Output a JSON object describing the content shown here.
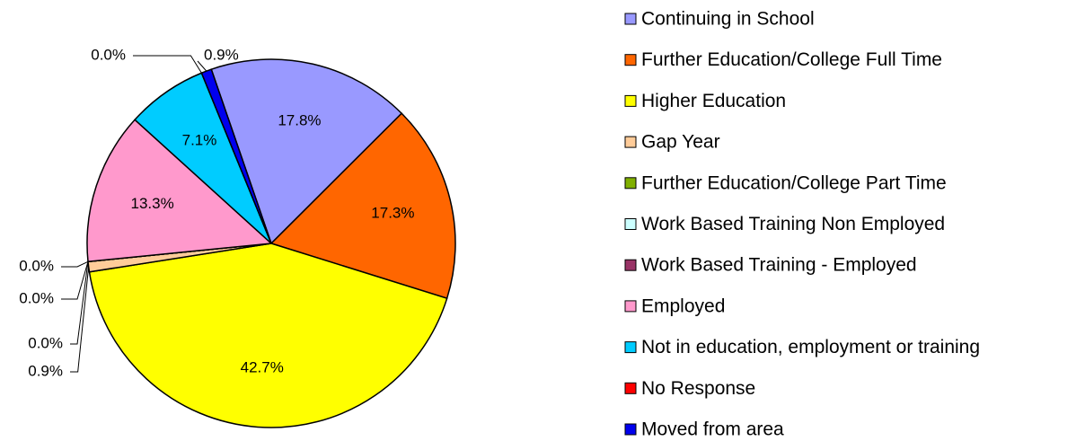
{
  "chart_data": {
    "type": "pie",
    "categories": [
      "Continuing in School",
      "Further Education/College Full Time",
      "Higher Education",
      "Gap Year",
      "Further Education/College Part Time",
      "Work Based Training Non Employed",
      "Work Based Training - Employed",
      "Employed",
      "Not in education, employment or training",
      "No Response",
      "Moved from area"
    ],
    "values": [
      17.8,
      17.3,
      42.7,
      0.9,
      0.0,
      0.0,
      0.0,
      13.3,
      7.1,
      0.0,
      0.9
    ],
    "value_labels": [
      "17.8%",
      "17.3%",
      "42.7%",
      "0.9%",
      "0.0%",
      "0.0%",
      "0.0%",
      "13.3%",
      "7.1%",
      "0.0%",
      "0.9%"
    ],
    "colors": [
      "#9999ff",
      "#ff6600",
      "#ffff00",
      "#ffcc99",
      "#80b000",
      "#ccffff",
      "#993366",
      "#ff99cc",
      "#00ccff",
      "#ff0000",
      "#0000ee"
    ],
    "legend": "right"
  }
}
